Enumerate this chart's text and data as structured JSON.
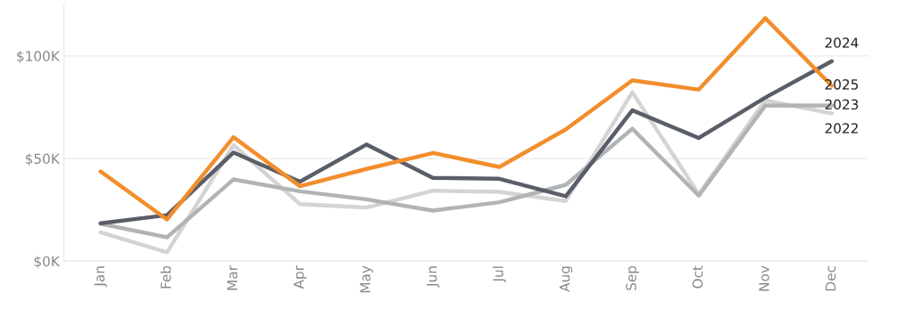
{
  "chart_data": {
    "type": "line",
    "categories": [
      "Jan",
      "Feb",
      "Mar",
      "Apr",
      "May",
      "Jun",
      "Jul",
      "Aug",
      "Sep",
      "Oct",
      "Nov",
      "Dec"
    ],
    "series": [
      {
        "name": "2022",
        "color": "#d4d4d4",
        "values": [
          14,
          4.3,
          56.5,
          27.8,
          26.1,
          34.3,
          33.7,
          29.3,
          82.3,
          32.6,
          78.3,
          72
        ]
      },
      {
        "name": "2023",
        "color": "#b0b4b4",
        "values": [
          18.2,
          11.6,
          39.8,
          34,
          30.1,
          24.6,
          28.7,
          37.2,
          64.5,
          31.9,
          75.8,
          75.8
        ]
      },
      {
        "name": "2024",
        "color": "#595e68",
        "values": [
          18.4,
          22.4,
          52.9,
          38.7,
          56.8,
          40.6,
          40.1,
          31.6,
          73.5,
          60,
          79.7,
          97.4
        ]
      },
      {
        "name": "2025",
        "color": "#f28e2b",
        "values": [
          43.7,
          20.3,
          60.4,
          36.5,
          44.9,
          52.7,
          45.9,
          64.2,
          88.1,
          83.6,
          118.4,
          85.5
        ]
      }
    ],
    "ylim": [
      0,
      125
    ],
    "yticks": [
      {
        "value": 0,
        "label": "$0K"
      },
      {
        "value": 50,
        "label": "$50K"
      },
      {
        "value": 100,
        "label": "$100K"
      }
    ],
    "grid": "y",
    "legend": false,
    "marker": "none",
    "line_style": "solid"
  }
}
